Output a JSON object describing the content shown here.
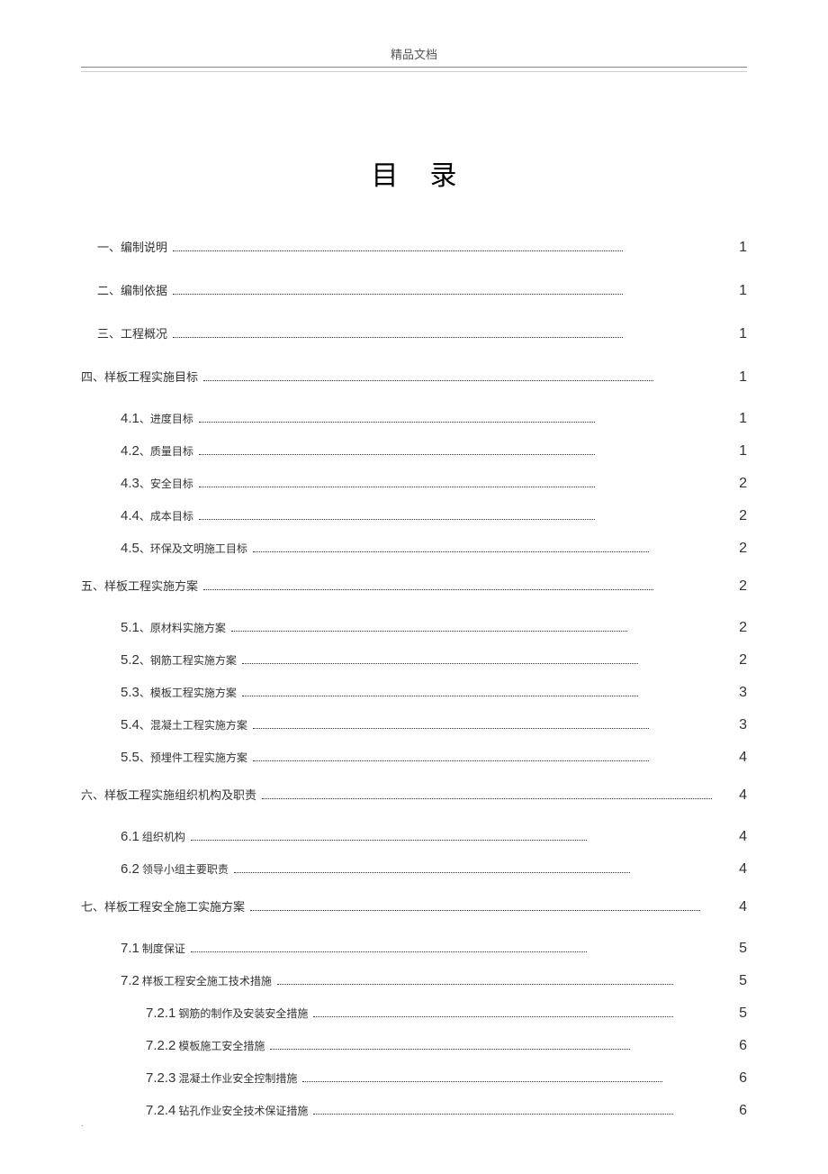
{
  "header": "精品文档",
  "title": "目录",
  "entries": [
    {
      "level": 0,
      "num": "",
      "text": "一、编制说明",
      "page": "1"
    },
    {
      "level": 0,
      "num": "",
      "text": "二、编制依据",
      "page": "1"
    },
    {
      "level": 0,
      "num": "",
      "text": "三、工程概况",
      "page": "1"
    },
    {
      "level": 0,
      "num": "",
      "text": "四、样板工程实施目标",
      "page": "1",
      "noindent": true
    },
    {
      "level": 1,
      "num": "4.1",
      "text": "、进度目标",
      "page": "1"
    },
    {
      "level": 1,
      "num": "4.2",
      "text": "、质量目标",
      "page": "1"
    },
    {
      "level": 1,
      "num": "4.3",
      "text": "、安全目标",
      "page": "2"
    },
    {
      "level": 1,
      "num": "4.4",
      "text": "、成本目标",
      "page": "2"
    },
    {
      "level": 1,
      "num": "4.5",
      "text": "、环保及文明施工目标",
      "page": "2"
    },
    {
      "level": 0,
      "num": "",
      "text": "五、样板工程实施方案",
      "page": "2",
      "noindent": true
    },
    {
      "level": 1,
      "num": "5.1",
      "text": "、原材料实施方案",
      "page": "2"
    },
    {
      "level": 1,
      "num": "5.2",
      "text": "、钢筋工程实施方案",
      "page": "2"
    },
    {
      "level": 1,
      "num": "5.3",
      "text": "、模板工程实施方案",
      "page": "3"
    },
    {
      "level": 1,
      "num": "5.4",
      "text": "、混凝土工程实施方案",
      "page": "3"
    },
    {
      "level": 1,
      "num": "5.5",
      "text": "、预埋件工程实施方案",
      "page": "4"
    },
    {
      "level": 0,
      "num": "",
      "text": "六、样板工程实施组织机构及职责",
      "page": "4",
      "noindent": true
    },
    {
      "level": 1,
      "num": "6.1",
      "text": " 组织机构",
      "page": "4"
    },
    {
      "level": 1,
      "num": "6.2",
      "text": " 领导小组主要职责",
      "page": "4"
    },
    {
      "level": 0,
      "num": "",
      "text": "七、样板工程安全施工实施方案",
      "page": "4",
      "noindent": true
    },
    {
      "level": 1,
      "num": "7.1",
      "text": " 制度保证",
      "page": "5"
    },
    {
      "level": 1,
      "num": "7.2",
      "text": " 样板工程安全施工技术措施",
      "page": "5"
    },
    {
      "level": 2,
      "num": "7.2.1",
      "text": " 钢筋的制作及安装安全措施",
      "page": "5"
    },
    {
      "level": 2,
      "num": "7.2.2",
      "text": " 模板施工安全措施",
      "page": "6"
    },
    {
      "level": 2,
      "num": "7.2.3",
      "text": " 混凝土作业安全控制措施",
      "page": "6"
    },
    {
      "level": 2,
      "num": "7.2.4",
      "text": " 钻孔作业安全技术保证措施",
      "page": "6"
    }
  ],
  "footerDot": "."
}
